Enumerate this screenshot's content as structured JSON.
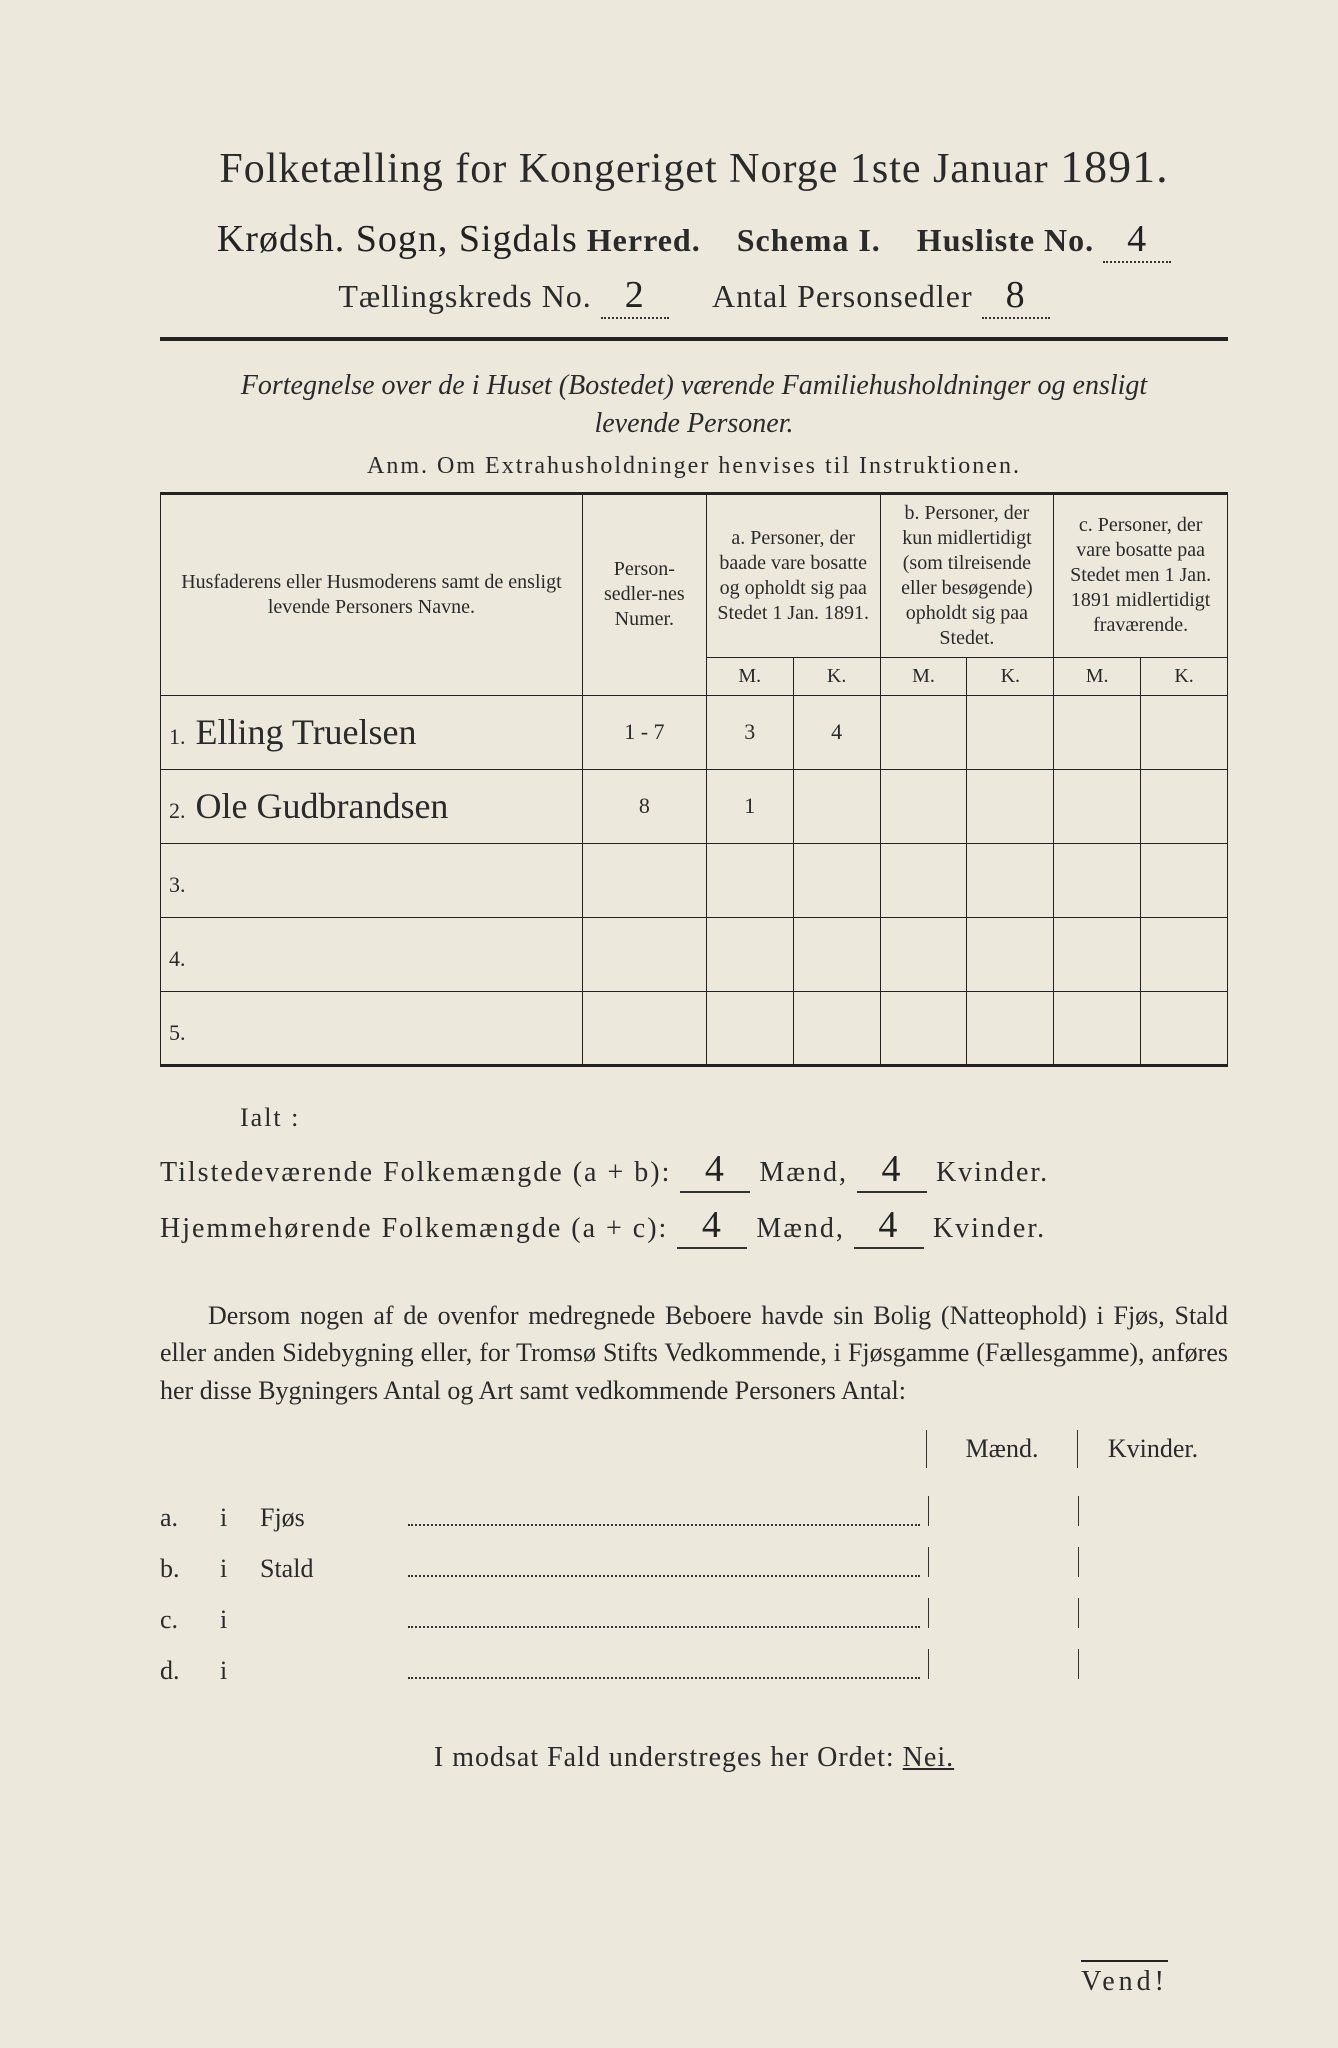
{
  "title": "Folketælling for Kongeriget Norge 1ste Januar",
  "year": "1891.",
  "herred_handwritten": "Krødsh. Sogn, Sigdals",
  "labels": {
    "herred": "Herred.",
    "schema": "Schema I.",
    "husliste": "Husliste No.",
    "taellingskreds": "Tællingskreds No.",
    "antal_personsedler": "Antal Personsedler"
  },
  "husliste_no": "4",
  "taellingskreds_no": "2",
  "antal_personsedler": "8",
  "subtitle": "Fortegnelse over de i Huset (Bostedet) værende Familiehusholdninger og ensligt levende Personer.",
  "anm": "Anm.  Om Extrahusholdninger henvises til Instruktionen.",
  "table": {
    "head_name": "Husfaderens eller Husmoderens samt de ensligt levende Personers Navne.",
    "head_num": "Person-sedler-nes Numer.",
    "head_a": "a.  Personer, der baade vare bosatte og opholdt sig paa Stedet 1 Jan. 1891.",
    "head_b": "b.  Personer, der kun midlertidigt (som tilreisende eller besøgende) opholdt sig paa Stedet.",
    "head_c": "c.  Personer, der vare bosatte paa Stedet men 1 Jan. 1891 midlertidigt fraværende.",
    "mk_m": "M.",
    "mk_k": "K.",
    "rows": [
      {
        "n": "1.",
        "name": "Elling Truelsen",
        "num": "1 - 7",
        "a_m": "3",
        "a_k": "4",
        "b_m": "",
        "b_k": "",
        "c_m": "",
        "c_k": ""
      },
      {
        "n": "2.",
        "name": "Ole Gudbrandsen",
        "num": "8",
        "a_m": "1",
        "a_k": "",
        "b_m": "",
        "b_k": "",
        "c_m": "",
        "c_k": ""
      },
      {
        "n": "3.",
        "name": "",
        "num": "",
        "a_m": "",
        "a_k": "",
        "b_m": "",
        "b_k": "",
        "c_m": "",
        "c_k": ""
      },
      {
        "n": "4.",
        "name": "",
        "num": "",
        "a_m": "",
        "a_k": "",
        "b_m": "",
        "b_k": "",
        "c_m": "",
        "c_k": ""
      },
      {
        "n": "5.",
        "name": "",
        "num": "",
        "a_m": "",
        "a_k": "",
        "b_m": "",
        "b_k": "",
        "c_m": "",
        "c_k": ""
      }
    ]
  },
  "totals": {
    "ialt": "Ialt :",
    "line1_label": "Tilstedeværende Folkemængde (a + b):",
    "line2_label": "Hjemmehørende Folkemængde (a + c):",
    "maend": "Mænd,",
    "kvinder": "Kvinder.",
    "l1_m": "4",
    "l1_k": "4",
    "l2_m": "4",
    "l2_k": "4"
  },
  "paragraph": "Dersom nogen af de ovenfor medregnede Beboere havde sin Bolig (Natteophold) i Fjøs, Stald eller anden Sidebygning eller, for Tromsø Stifts Vedkommende, i Fjøsgamme (Fællesgamme), anføres her disse Bygningers Antal og Art samt vedkommende Personers Antal:",
  "side_head_m": "Mænd.",
  "side_head_k": "Kvinder.",
  "sidelist": [
    {
      "key": "a.",
      "i": "i",
      "what": "Fjøs"
    },
    {
      "key": "b.",
      "i": "i",
      "what": "Stald"
    },
    {
      "key": "c.",
      "i": "i",
      "what": ""
    },
    {
      "key": "d.",
      "i": "i",
      "what": ""
    }
  ],
  "footer": "I modsat Fald understreges her Ordet:",
  "footer_nei": "Nei.",
  "vend": "Vend!"
}
